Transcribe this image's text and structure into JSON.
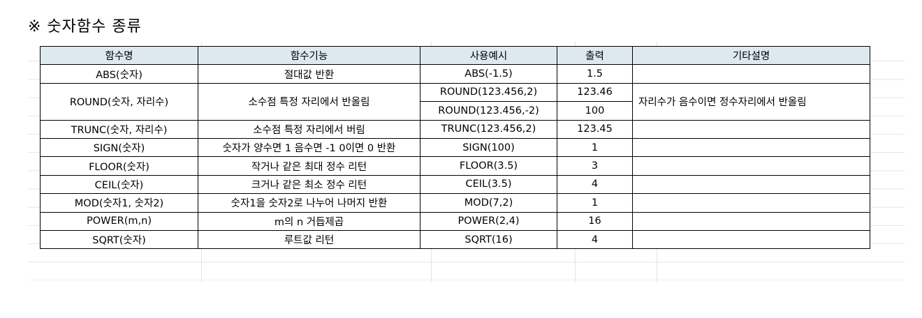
{
  "title": "※ 숫자함수 종류",
  "table": {
    "headers": [
      "함수명",
      "함수기능",
      "사용예시",
      "출력",
      "기타설명"
    ],
    "rows": [
      {
        "name": "ABS(숫자)",
        "desc": "절대값 반환",
        "examples": [
          {
            "usage": "ABS(-1.5)",
            "output": "1.5"
          }
        ],
        "note": ""
      },
      {
        "name": "ROUND(숫자, 자리수)",
        "desc": "소수점 특정 자리에서 반올림",
        "examples": [
          {
            "usage": "ROUND(123.456,2)",
            "output": "123.46"
          },
          {
            "usage": "ROUND(123.456,-2)",
            "output": "100"
          }
        ],
        "note": "자리수가 음수이면 정수자리에서 반올림"
      },
      {
        "name": "TRUNC(숫자, 자리수)",
        "desc": "소수점 특정 자리에서 버림",
        "examples": [
          {
            "usage": "TRUNC(123.456,2)",
            "output": "123.45"
          }
        ],
        "note": ""
      },
      {
        "name": "SIGN(숫자)",
        "desc": "숫자가 양수면 1 음수면 -1 0이면 0 반환",
        "examples": [
          {
            "usage": "SIGN(100)",
            "output": "1"
          }
        ],
        "note": ""
      },
      {
        "name": "FLOOR(숫자)",
        "desc": "작거나 같은 최대 정수 리턴",
        "examples": [
          {
            "usage": "FLOOR(3.5)",
            "output": "3"
          }
        ],
        "note": ""
      },
      {
        "name": "CEIL(숫자)",
        "desc": "크거나 같은 최소 정수 리턴",
        "examples": [
          {
            "usage": "CEIL(3.5)",
            "output": "4"
          }
        ],
        "note": ""
      },
      {
        "name": "MOD(숫자1, 숫자2)",
        "desc": "숫자1을 숫자2로 나누어 나머지 반환",
        "examples": [
          {
            "usage": "MOD(7,2)",
            "output": "1"
          }
        ],
        "note": ""
      },
      {
        "name": "POWER(m,n)",
        "desc": "m의 n 거듭제곱",
        "examples": [
          {
            "usage": "POWER(2,4)",
            "output": "16"
          }
        ],
        "note": ""
      },
      {
        "name": "SQRT(숫자)",
        "desc": "루트값 리턴",
        "examples": [
          {
            "usage": "SQRT(16)",
            "output": "4"
          }
        ],
        "note": ""
      }
    ]
  }
}
